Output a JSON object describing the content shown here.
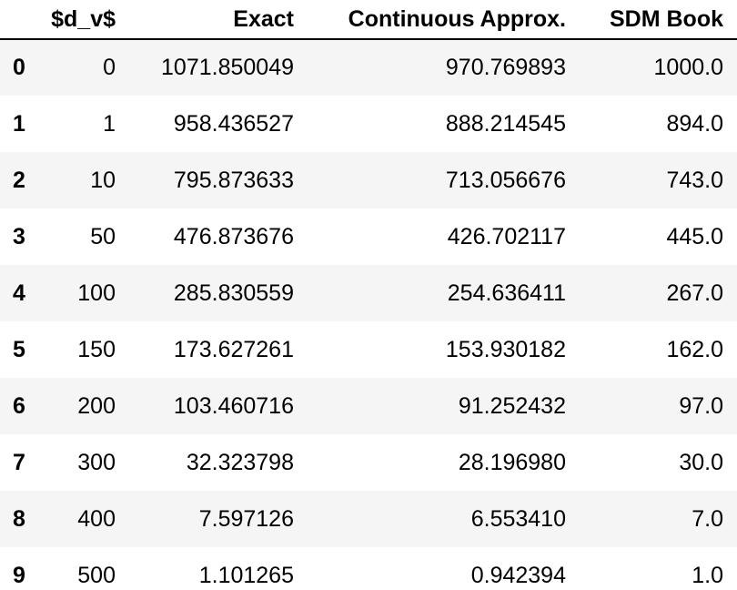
{
  "table": {
    "columns": [
      "$d_v$",
      "Exact",
      "Continuous Approx.",
      "SDM Book"
    ],
    "rows": [
      {
        "index": "0",
        "d_v": "0",
        "exact": "1071.850049",
        "continuous": "970.769893",
        "sdm": "1000.0"
      },
      {
        "index": "1",
        "d_v": "1",
        "exact": "958.436527",
        "continuous": "888.214545",
        "sdm": "894.0"
      },
      {
        "index": "2",
        "d_v": "10",
        "exact": "795.873633",
        "continuous": "713.056676",
        "sdm": "743.0"
      },
      {
        "index": "3",
        "d_v": "50",
        "exact": "476.873676",
        "continuous": "426.702117",
        "sdm": "445.0"
      },
      {
        "index": "4",
        "d_v": "100",
        "exact": "285.830559",
        "continuous": "254.636411",
        "sdm": "267.0"
      },
      {
        "index": "5",
        "d_v": "150",
        "exact": "173.627261",
        "continuous": "153.930182",
        "sdm": "162.0"
      },
      {
        "index": "6",
        "d_v": "200",
        "exact": "103.460716",
        "continuous": "91.252432",
        "sdm": "97.0"
      },
      {
        "index": "7",
        "d_v": "300",
        "exact": "32.323798",
        "continuous": "28.196980",
        "sdm": "30.0"
      },
      {
        "index": "8",
        "d_v": "400",
        "exact": "7.597126",
        "continuous": "6.553410",
        "sdm": "7.0"
      },
      {
        "index": "9",
        "d_v": "500",
        "exact": "1.101265",
        "continuous": "0.942394",
        "sdm": "1.0"
      }
    ]
  }
}
